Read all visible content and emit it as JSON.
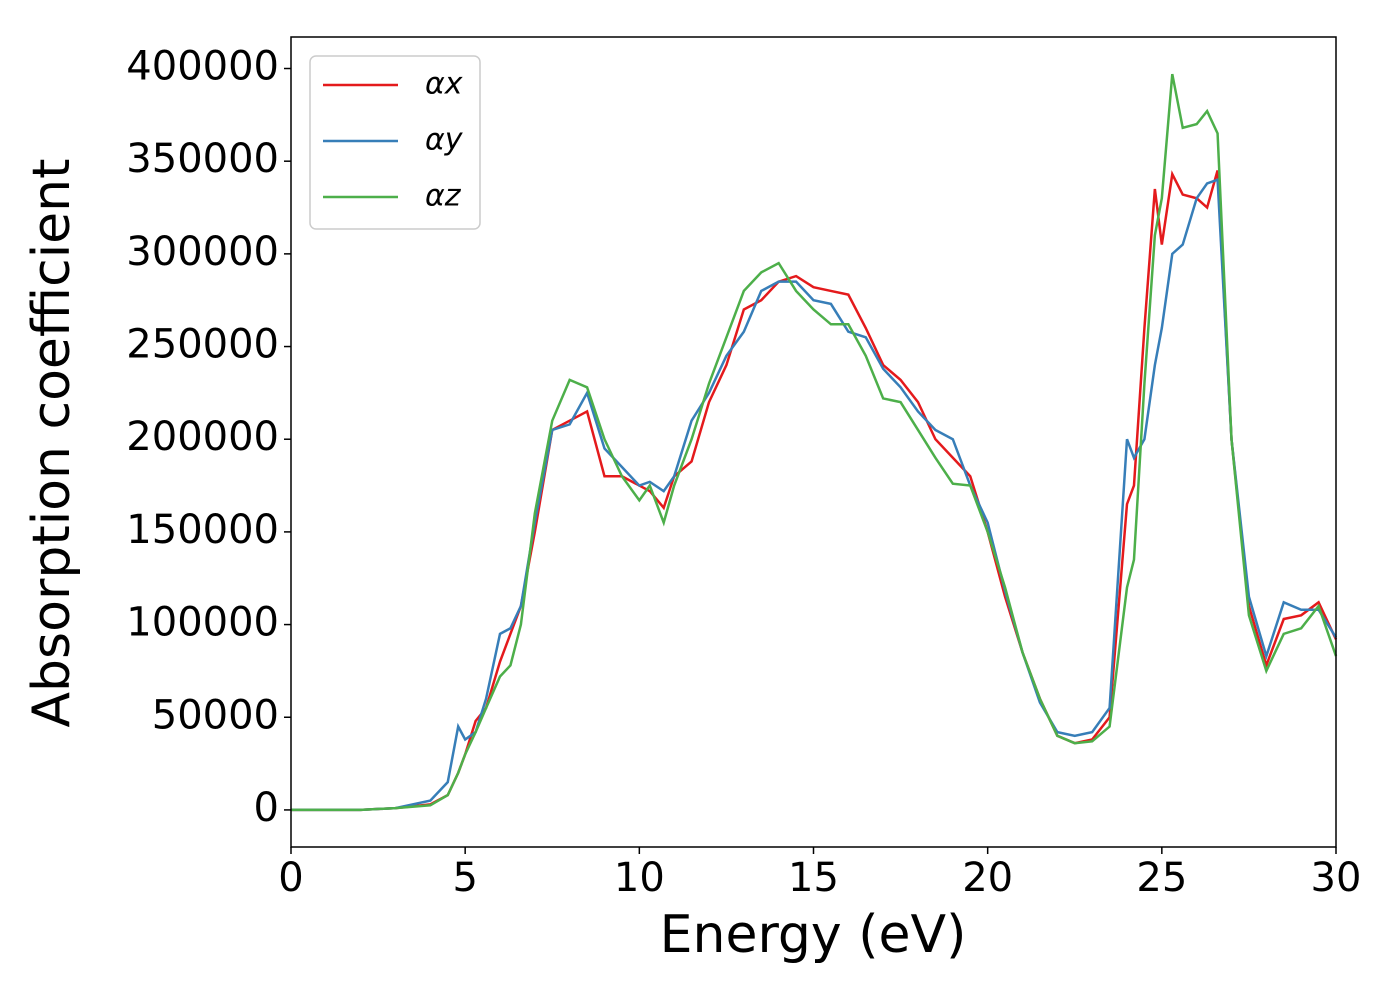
{
  "chart_data": {
    "type": "line",
    "xlabel": "Energy (eV)",
    "ylabel": "Absorption coefficient",
    "x": [
      0,
      1,
      2,
      3,
      4,
      4.5,
      4.8,
      5,
      5.3,
      5.6,
      6,
      6.3,
      6.6,
      7,
      7.5,
      8,
      8.5,
      9,
      9.5,
      10,
      10.3,
      10.7,
      11,
      11.5,
      12,
      12.5,
      13,
      13.5,
      14,
      14.5,
      15,
      15.5,
      16,
      16.5,
      17,
      17.5,
      18,
      18.5,
      19,
      19.5,
      20,
      20.5,
      21,
      21.5,
      22,
      22.5,
      23,
      23.5,
      24,
      24.2,
      24.5,
      24.8,
      25,
      25.3,
      25.6,
      26,
      26.3,
      26.6,
      27,
      27.5,
      28,
      28.5,
      29,
      29.5,
      30
    ],
    "series": [
      {
        "name": "αx",
        "color": "#e41a1c",
        "values": [
          0,
          0,
          0,
          1000,
          3000,
          8000,
          20000,
          30000,
          48000,
          55000,
          80000,
          95000,
          110000,
          150000,
          205000,
          210000,
          215000,
          180000,
          180000,
          175000,
          172000,
          163000,
          180000,
          188000,
          220000,
          240000,
          270000,
          275000,
          285000,
          288000,
          282000,
          280000,
          278000,
          260000,
          240000,
          232000,
          220000,
          200000,
          190000,
          180000,
          150000,
          115000,
          85000,
          60000,
          40000,
          36000,
          38000,
          50000,
          165000,
          175000,
          260000,
          335000,
          305000,
          343000,
          332000,
          330000,
          325000,
          345000,
          200000,
          110000,
          78000,
          103000,
          105000,
          112000,
          92000
        ]
      },
      {
        "name": "αy",
        "color": "#377eb8",
        "values": [
          0,
          0,
          0,
          1000,
          5000,
          15000,
          45000,
          38000,
          42000,
          60000,
          95000,
          98000,
          110000,
          155000,
          205000,
          208000,
          225000,
          195000,
          185000,
          175000,
          177000,
          172000,
          180000,
          210000,
          225000,
          245000,
          258000,
          280000,
          285000,
          285000,
          275000,
          273000,
          258000,
          255000,
          238000,
          228000,
          215000,
          205000,
          200000,
          175000,
          155000,
          118000,
          85000,
          58000,
          42000,
          40000,
          42000,
          55000,
          200000,
          190000,
          200000,
          240000,
          260000,
          300000,
          305000,
          330000,
          338000,
          340000,
          200000,
          115000,
          83000,
          112000,
          108000,
          108000,
          93000
        ]
      },
      {
        "name": "αz",
        "color": "#4daf4a",
        "values": [
          0,
          0,
          0,
          1000,
          2500,
          8000,
          20000,
          30000,
          42000,
          55000,
          72000,
          78000,
          100000,
          160000,
          210000,
          232000,
          228000,
          200000,
          180000,
          167000,
          175000,
          155000,
          175000,
          200000,
          230000,
          255000,
          280000,
          290000,
          295000,
          280000,
          270000,
          262000,
          262000,
          245000,
          222000,
          220000,
          205000,
          190000,
          176000,
          175000,
          150000,
          120000,
          85000,
          60000,
          40000,
          36000,
          37000,
          45000,
          120000,
          135000,
          230000,
          310000,
          330000,
          397000,
          368000,
          370000,
          377000,
          365000,
          200000,
          105000,
          75000,
          95000,
          98000,
          110000,
          83000
        ]
      }
    ],
    "xlim": [
      0,
      30
    ],
    "xticks": [
      0,
      5,
      10,
      15,
      20,
      25,
      30
    ],
    "ylim": [
      -20000,
      417000
    ],
    "yticks": [
      0,
      50000,
      100000,
      150000,
      200000,
      250000,
      300000,
      350000,
      400000
    ],
    "legend": "upper left",
    "grid": false
  }
}
